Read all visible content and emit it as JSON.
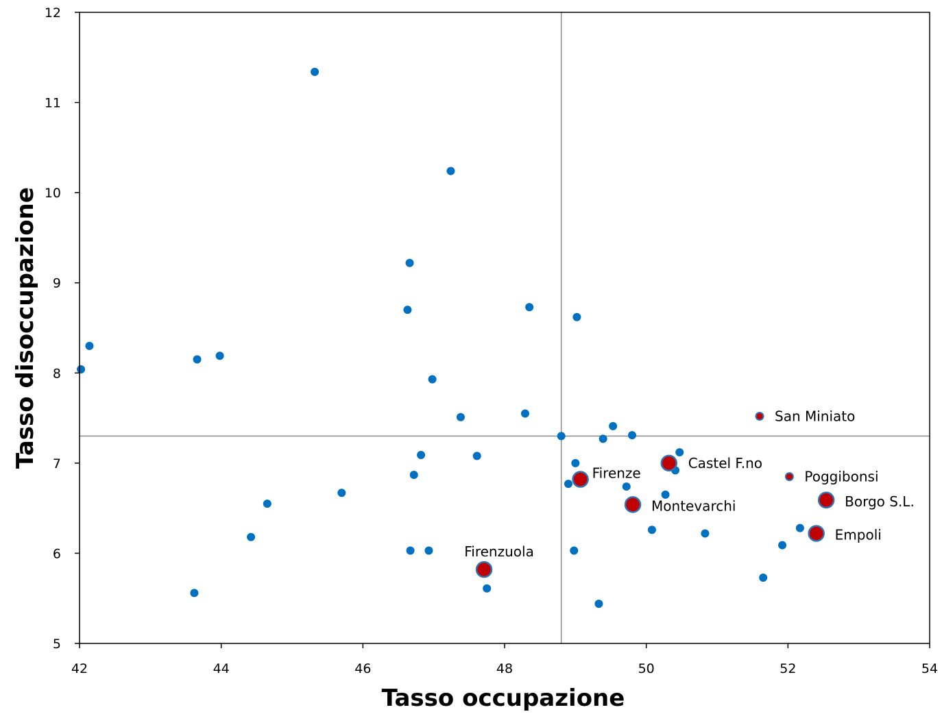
{
  "chart_data": {
    "type": "scatter",
    "xlabel": "Tasso occupazione",
    "ylabel": "Tasso disoccupazione",
    "xlim": [
      42,
      54
    ],
    "ylim": [
      5,
      12
    ],
    "xticks": [
      "42",
      "44",
      "46",
      "48",
      "50",
      "52",
      "54"
    ],
    "yticks": [
      "5",
      "6",
      "7",
      "8",
      "9",
      "10",
      "11",
      "12"
    ],
    "reference_lines": {
      "x": 48.8,
      "y": 7.3
    },
    "colors": {
      "point": "#0070C0",
      "highlight": "#C00000",
      "highlight_border": "#2E75B6",
      "ref_line": "#8C8C8C",
      "frame": "#000000"
    },
    "series": [
      {
        "points": [
          [
            42.02,
            8.04
          ],
          [
            42.14,
            8.3
          ],
          [
            43.66,
            8.15
          ],
          [
            43.98,
            8.19
          ],
          [
            45.32,
            11.34
          ],
          [
            47.24,
            10.24
          ],
          [
            46.66,
            9.22
          ],
          [
            46.63,
            8.7
          ],
          [
            48.35,
            8.73
          ],
          [
            49.02,
            8.62
          ],
          [
            46.98,
            7.93
          ],
          [
            47.38,
            7.51
          ],
          [
            48.29,
            7.55
          ],
          [
            48.8,
            7.3
          ],
          [
            49.53,
            7.41
          ],
          [
            49.8,
            7.31
          ],
          [
            49.39,
            7.27
          ],
          [
            50.47,
            7.12
          ],
          [
            50.41,
            6.92
          ],
          [
            46.82,
            7.09
          ],
          [
            47.61,
            7.08
          ],
          [
            46.72,
            6.87
          ],
          [
            49.0,
            7.0
          ],
          [
            48.9,
            6.77
          ],
          [
            49.72,
            6.74
          ],
          [
            50.27,
            6.65
          ],
          [
            45.7,
            6.67
          ],
          [
            44.65,
            6.55
          ],
          [
            44.42,
            6.18
          ],
          [
            46.67,
            6.03
          ],
          [
            46.93,
            6.03
          ],
          [
            48.98,
            6.03
          ],
          [
            50.08,
            6.26
          ],
          [
            50.83,
            6.22
          ],
          [
            52.17,
            6.28
          ],
          [
            51.92,
            6.09
          ],
          [
            51.65,
            5.73
          ],
          [
            47.75,
            5.61
          ],
          [
            43.62,
            5.56
          ],
          [
            49.33,
            5.44
          ]
        ]
      },
      {
        "points": [
          {
            "x": 51.6,
            "y": 7.52,
            "label": "San Miniato",
            "size": "small"
          },
          {
            "x": 52.02,
            "y": 6.85,
            "label": "Poggibonsi",
            "size": "small"
          },
          {
            "x": 50.32,
            "y": 7.0,
            "label": "Castel F.no",
            "size": "large"
          },
          {
            "x": 49.07,
            "y": 6.82,
            "label": "Firenze",
            "size": "large"
          },
          {
            "x": 49.81,
            "y": 6.54,
            "label": "Montevarchi",
            "size": "large"
          },
          {
            "x": 52.54,
            "y": 6.59,
            "label": "Borgo S.L.",
            "size": "large"
          },
          {
            "x": 52.4,
            "y": 6.22,
            "label": "Empoli",
            "size": "large"
          },
          {
            "x": 47.71,
            "y": 5.82,
            "label": "Firenzuola",
            "size": "large"
          }
        ]
      }
    ]
  }
}
